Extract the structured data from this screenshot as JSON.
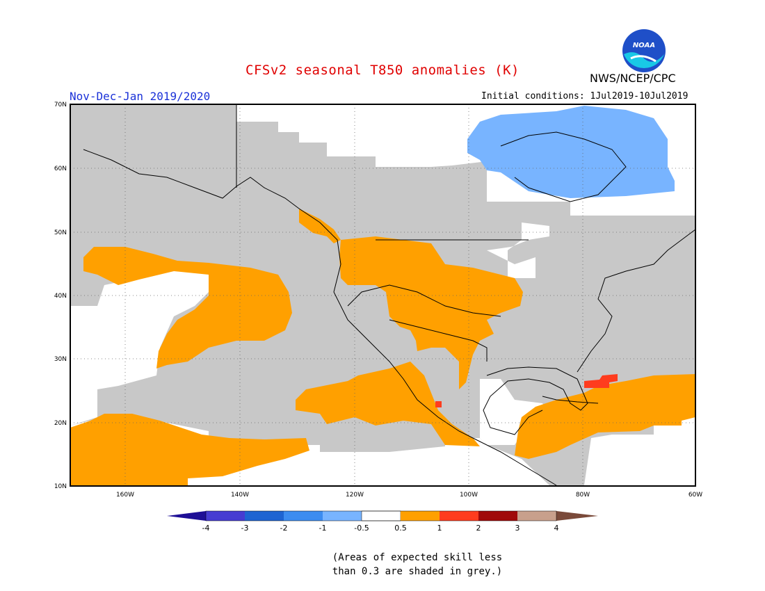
{
  "header": {
    "title": "CFSv2 seasonal T850 anomalies (K)",
    "agency": "NWS/NCEP/CPC",
    "logo_text": "NOAA",
    "season": "Nov-Dec-Jan 2019/2020",
    "initial_conditions": "Initial conditions: 1Jul2019-10Jul2019"
  },
  "map": {
    "lat_labels": [
      "70N",
      "60N",
      "50N",
      "40N",
      "30N",
      "20N",
      "10N"
    ],
    "lon_labels": [
      "160W",
      "140W",
      "120W",
      "100W",
      "80W",
      "60W"
    ],
    "colors": {
      "skill_grey": "#c8c8c8",
      "warm_0_5_1": "#ffa000",
      "warm_1_2": "#ff3c1e",
      "cold_m1_m0_5": "#78b4ff",
      "land_outline": "#000000",
      "grid": "#666666"
    }
  },
  "colorbar": {
    "labels": [
      "-4",
      "-3",
      "-2",
      "-1",
      "-0.5",
      "0.5",
      "1",
      "2",
      "3",
      "4"
    ],
    "colors": [
      "#1e0f96",
      "#463cd2",
      "#1e64d2",
      "#3c8cf0",
      "#78b4ff",
      "#ffffff",
      "#ffa000",
      "#ff3c1e",
      "#a00a0a",
      "#c8a08c"
    ],
    "low_arrow_color": "#1e0f96",
    "high_arrow_color": "#7a4a3a"
  },
  "footnote": {
    "line1": "(Areas of expected skill less",
    "line2": "than 0.3 are shaded in grey.)"
  }
}
